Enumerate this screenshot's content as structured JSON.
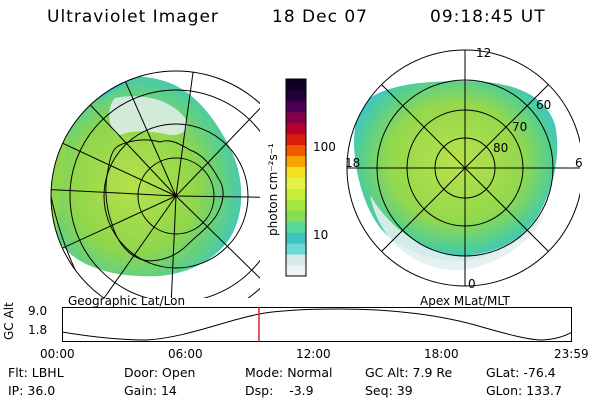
{
  "header": {
    "instrument": "Ultraviolet Imager",
    "date": "18 Dec 07",
    "time": "09:18:45 UT"
  },
  "colorbar": {
    "label": "photon cm⁻²s⁻¹",
    "ticks": [
      "100",
      "10"
    ],
    "colors": [
      "#eef4f4",
      "#d6e8e8",
      "#6cd9d5",
      "#3cc3c4",
      "#57d99a",
      "#86dd55",
      "#a6e640",
      "#c8ee38",
      "#e5f246",
      "#f6e020",
      "#f6a400",
      "#ee5a00",
      "#d91c10",
      "#b6002c",
      "#80004a",
      "#4c0055",
      "#22003a",
      "#0e0022"
    ]
  },
  "geo_panel": {
    "caption": "Geographic Lat/Lon",
    "colors": {
      "aurora": "#9ad84a",
      "aurora_dim": "#39c4cc",
      "pale": "#dcecec",
      "grid": "#000000"
    }
  },
  "apex_panel": {
    "caption": "Apex MLat/MLT",
    "mlt_labels": [
      "12",
      "18",
      "6",
      "0"
    ],
    "mlat_labels": [
      "60",
      "70",
      "80"
    ]
  },
  "orbit_plot": {
    "ylabel": "GC Alt",
    "y_ticks": [
      "9.0",
      "1.8"
    ],
    "x_ticks": [
      "00:00",
      "06:00",
      "12:00",
      "18:00",
      "23:59"
    ],
    "cursor_color": "#e02020"
  },
  "status": {
    "filter_label": "Flt:",
    "filter_value": "LBHL",
    "ip_label": "IP:",
    "ip_value": "36.0",
    "door_label": "Door:",
    "door_value": "Open",
    "gain_label": "Gain:",
    "gain_value": "14",
    "mode_label": "Mode:",
    "mode_value": "Normal",
    "dsp_label": "Dsp:",
    "dsp_value": "-3.9",
    "gcalt_label": "GC Alt:",
    "gcalt_value": "7.9 Re",
    "seq_label": "Seq:",
    "seq_value": "39",
    "glat_label": "GLat:",
    "glat_value": "-76.4",
    "glon_label": "GLon:",
    "glon_value": "133.7"
  }
}
